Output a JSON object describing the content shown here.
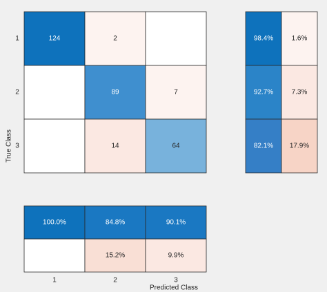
{
  "chart_data": {
    "type": "heatmap",
    "xlabel": "Predicted Class",
    "ylabel": "True Class",
    "row_labels": [
      "1",
      "2",
      "3"
    ],
    "col_labels": [
      "1",
      "2",
      "3"
    ],
    "matrix": [
      [
        124,
        2,
        null
      ],
      [
        null,
        89,
        7
      ],
      [
        null,
        14,
        64
      ]
    ],
    "row_summary": [
      [
        "98.4%",
        "1.6%"
      ],
      [
        "92.7%",
        "7.3%"
      ],
      [
        "82.1%",
        "17.9%"
      ]
    ],
    "col_summary": [
      [
        "100.0%",
        "84.8%",
        "90.1%"
      ],
      [
        "",
        "15.2%",
        "9.9%"
      ]
    ]
  },
  "colors": {
    "background": "#f0f0f0",
    "diag_strong": "#0e72bc",
    "diag_mid": "#3f8fcf",
    "diag_light": "#78b2dc",
    "summary_1": "#0e72bc",
    "summary_2": "#2b84c8",
    "summary_3": "#357fc6",
    "summary_4": "#1a78c2",
    "offdiag_faint": "#fdf3f0",
    "offdiag_light": "#fbe8e2",
    "offdiag_mid": "#f9dfd5",
    "offdiag_strong": "#f7d4c6",
    "empty": "#ffffff",
    "grid": "#2a2a2a"
  }
}
